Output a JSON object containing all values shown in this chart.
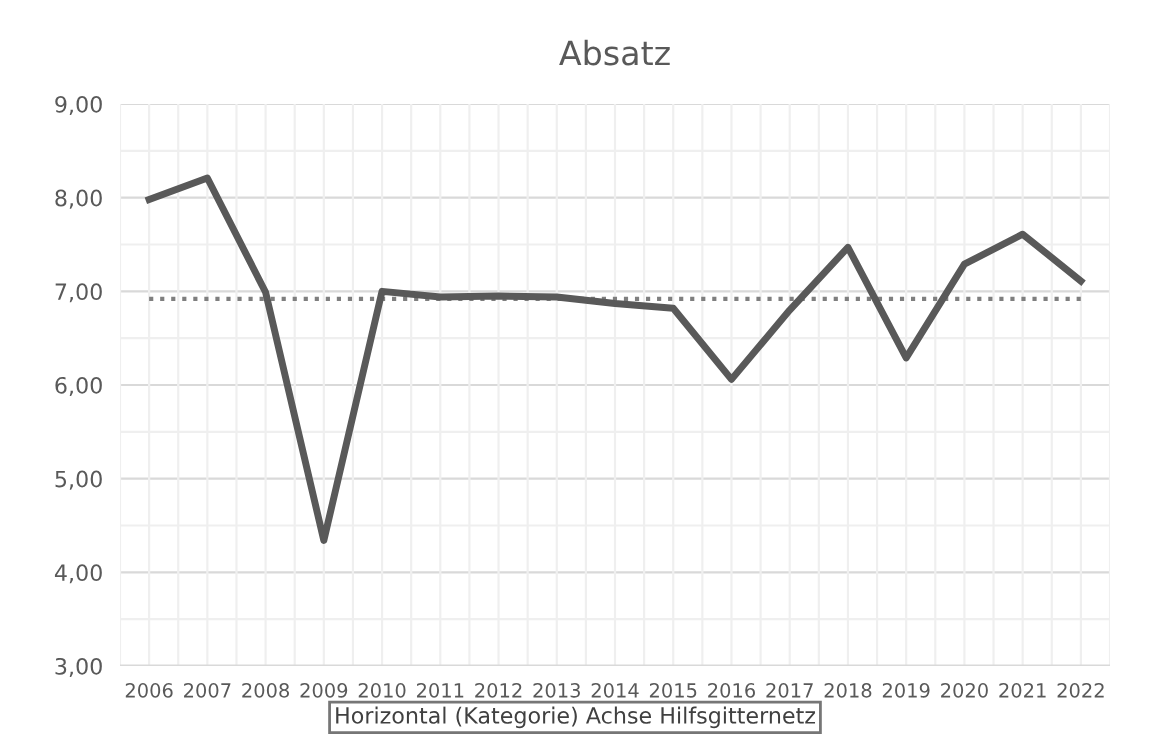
{
  "chart_data": {
    "type": "line",
    "title": "Absatz",
    "categories": [
      "2006",
      "2007",
      "2008",
      "2009",
      "2010",
      "2011",
      "2012",
      "2013",
      "2014",
      "2015",
      "2016",
      "2017",
      "2018",
      "2019",
      "2020",
      "2021",
      "2022"
    ],
    "series": [
      {
        "color": "#595959",
        "values": [
          7.98,
          8.21,
          6.99,
          4.34,
          7.0,
          6.94,
          6.95,
          6.94,
          6.87,
          6.82,
          6.06,
          6.8,
          7.47,
          6.29,
          7.29,
          7.61,
          7.11
        ]
      }
    ],
    "ylim": [
      3,
      9
    ],
    "yticks": [
      {
        "value": 3,
        "label": "3,00"
      },
      {
        "value": 4,
        "label": "4,00"
      },
      {
        "value": 5,
        "label": "5,00"
      },
      {
        "value": 6,
        "label": "6,00"
      },
      {
        "value": 7,
        "label": "7,00"
      },
      {
        "value": 8,
        "label": "8,00"
      },
      {
        "value": 9,
        "label": "9,00"
      }
    ],
    "ref_lines": [
      {
        "axis": "y",
        "value": 6.92,
        "color": "#7f7f7f",
        "line_style": "dotted"
      }
    ],
    "annotations": [
      "Horizontal (Kategorie) Achse Hilfsgitternetz"
    ],
    "grid": true,
    "legend": false,
    "marker": "none",
    "line_style": "solid"
  }
}
